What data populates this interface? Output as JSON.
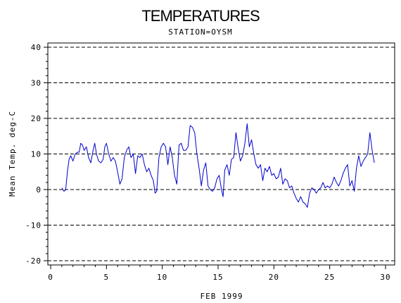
{
  "chart_data": {
    "type": "line",
    "title": "TEMPERATURES",
    "subtitle": "STATION=OYSM",
    "xlabel": "FEB 1999",
    "ylabel": "Mean Temp. deg-C",
    "xlim": [
      0,
      30
    ],
    "ylim": [
      -20,
      40
    ],
    "xticks": [
      "0",
      "5",
      "10",
      "15",
      "20",
      "25",
      "30"
    ],
    "yticks": [
      "-20",
      "-10",
      "0",
      "10",
      "20",
      "30",
      "40"
    ],
    "grid": "dashed horizontal lines at y = -20, -10, 0, 10, 20, 30, 40",
    "series": [
      {
        "color": "#0000cc",
        "points": [
          [
            1.0,
            0.5
          ],
          [
            1.2,
            -0.5
          ],
          [
            1.35,
            0.0
          ],
          [
            1.5,
            5.0
          ],
          [
            1.65,
            8.5
          ],
          [
            1.8,
            9.5
          ],
          [
            2.0,
            8.0
          ],
          [
            2.2,
            10.0
          ],
          [
            2.4,
            10.5
          ],
          [
            2.55,
            10.5
          ],
          [
            2.7,
            13.0
          ],
          [
            2.85,
            12.5
          ],
          [
            3.0,
            11.0
          ],
          [
            3.2,
            12.0
          ],
          [
            3.4,
            9.0
          ],
          [
            3.6,
            7.5
          ],
          [
            3.8,
            11.0
          ],
          [
            3.95,
            13.0
          ],
          [
            4.1,
            10.0
          ],
          [
            4.3,
            8.0
          ],
          [
            4.5,
            7.5
          ],
          [
            4.7,
            8.5
          ],
          [
            4.85,
            12.0
          ],
          [
            5.0,
            13.0
          ],
          [
            5.2,
            10.0
          ],
          [
            5.4,
            8.0
          ],
          [
            5.6,
            9.0
          ],
          [
            5.8,
            8.0
          ],
          [
            6.0,
            5.0
          ],
          [
            6.2,
            1.5
          ],
          [
            6.4,
            3.0
          ],
          [
            6.6,
            9.0
          ],
          [
            6.8,
            11.0
          ],
          [
            7.0,
            12.0
          ],
          [
            7.2,
            9.0
          ],
          [
            7.4,
            10.0
          ],
          [
            7.6,
            4.5
          ],
          [
            7.8,
            9.5
          ],
          [
            8.0,
            9.0
          ],
          [
            8.2,
            10.0
          ],
          [
            8.4,
            7.0
          ],
          [
            8.6,
            5.0
          ],
          [
            8.8,
            6.0
          ],
          [
            9.0,
            4.0
          ],
          [
            9.2,
            2.5
          ],
          [
            9.35,
            -1.0
          ],
          [
            9.5,
            -0.5
          ],
          [
            9.7,
            9.0
          ],
          [
            9.9,
            12.0
          ],
          [
            10.1,
            13.0
          ],
          [
            10.3,
            12.0
          ],
          [
            10.5,
            7.0
          ],
          [
            10.7,
            12.0
          ],
          [
            10.9,
            9.0
          ],
          [
            11.1,
            4.0
          ],
          [
            11.3,
            1.5
          ],
          [
            11.5,
            12.5
          ],
          [
            11.7,
            13.0
          ],
          [
            11.9,
            11.0
          ],
          [
            12.1,
            11.0
          ],
          [
            12.3,
            12.0
          ],
          [
            12.5,
            18.0
          ],
          [
            12.7,
            17.5
          ],
          [
            12.9,
            16.0
          ],
          [
            13.1,
            10.0
          ],
          [
            13.3,
            6.0
          ],
          [
            13.5,
            1.0
          ],
          [
            13.7,
            5.5
          ],
          [
            13.9,
            7.5
          ],
          [
            14.1,
            1.0
          ],
          [
            14.3,
            0.0
          ],
          [
            14.5,
            -0.5
          ],
          [
            14.7,
            0.5
          ],
          [
            14.9,
            3.0
          ],
          [
            15.1,
            4.0
          ],
          [
            15.3,
            0.0
          ],
          [
            15.45,
            -2.0
          ],
          [
            15.6,
            5.5
          ],
          [
            15.8,
            7.0
          ],
          [
            16.0,
            4.0
          ],
          [
            16.2,
            8.5
          ],
          [
            16.4,
            9.0
          ],
          [
            16.6,
            16.0
          ],
          [
            16.8,
            11.5
          ],
          [
            17.0,
            8.0
          ],
          [
            17.2,
            9.5
          ],
          [
            17.4,
            13.0
          ],
          [
            17.6,
            18.5
          ],
          [
            17.8,
            12.0
          ],
          [
            18.0,
            14.0
          ],
          [
            18.2,
            10.0
          ],
          [
            18.4,
            7.0
          ],
          [
            18.6,
            6.0
          ],
          [
            18.8,
            7.0
          ],
          [
            19.0,
            2.5
          ],
          [
            19.2,
            6.0
          ],
          [
            19.4,
            5.0
          ],
          [
            19.6,
            6.5
          ],
          [
            19.8,
            4.0
          ],
          [
            20.0,
            4.5
          ],
          [
            20.2,
            3.0
          ],
          [
            20.4,
            3.5
          ],
          [
            20.6,
            6.0
          ],
          [
            20.8,
            1.5
          ],
          [
            21.0,
            3.0
          ],
          [
            21.2,
            2.5
          ],
          [
            21.4,
            0.5
          ],
          [
            21.6,
            1.0
          ],
          [
            21.8,
            -1.0
          ],
          [
            22.0,
            -2.5
          ],
          [
            22.2,
            -3.5
          ],
          [
            22.4,
            -2.0
          ],
          [
            22.6,
            -3.5
          ],
          [
            22.8,
            -4.0
          ],
          [
            23.0,
            -5.0
          ],
          [
            23.2,
            -1.0
          ],
          [
            23.4,
            0.5
          ],
          [
            23.6,
            0.0
          ],
          [
            23.8,
            -1.0
          ],
          [
            24.0,
            0.0
          ],
          [
            24.2,
            0.5
          ],
          [
            24.4,
            2.0
          ],
          [
            24.6,
            0.5
          ],
          [
            24.8,
            1.0
          ],
          [
            25.0,
            0.5
          ],
          [
            25.2,
            1.5
          ],
          [
            25.4,
            3.5
          ],
          [
            25.6,
            2.0
          ],
          [
            25.8,
            1.0
          ],
          [
            26.0,
            2.5
          ],
          [
            26.2,
            4.5
          ],
          [
            26.4,
            6.0
          ],
          [
            26.6,
            7.0
          ],
          [
            26.8,
            1.0
          ],
          [
            27.0,
            2.5
          ],
          [
            27.2,
            -0.5
          ],
          [
            27.4,
            6.0
          ],
          [
            27.6,
            9.5
          ],
          [
            27.8,
            6.5
          ],
          [
            28.0,
            8.0
          ],
          [
            28.2,
            9.0
          ],
          [
            28.4,
            10.0
          ],
          [
            28.6,
            16.0
          ],
          [
            28.8,
            11.0
          ],
          [
            29.0,
            7.5
          ]
        ]
      }
    ]
  }
}
